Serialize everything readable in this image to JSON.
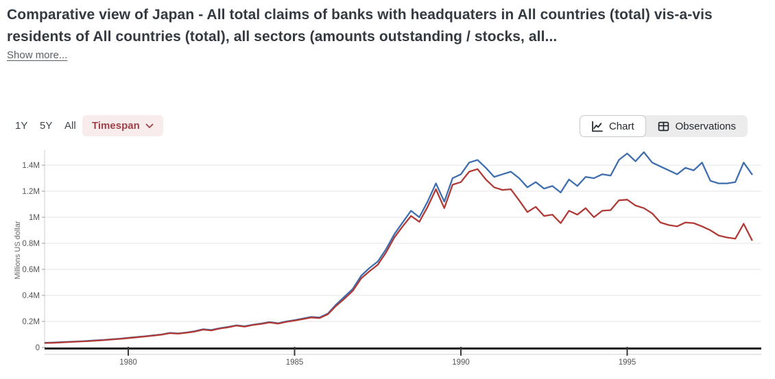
{
  "header": {
    "title": "Comparative view of Japan - All total claims of banks with headquaters in All countries (total) vis-a-vis residents of All countries (total), all sectors (amounts outstanding / stocks, all...",
    "show_more": "Show more..."
  },
  "controls": {
    "range_buttons": [
      {
        "label": "1Y"
      },
      {
        "label": "5Y"
      },
      {
        "label": "All"
      }
    ],
    "timespan": {
      "label": "Timespan",
      "icon": "chevron-down-icon"
    },
    "view_toggle": [
      {
        "label": "Chart",
        "icon": "line-chart-icon",
        "selected": true
      },
      {
        "label": "Observations",
        "icon": "table-icon",
        "selected": false
      }
    ]
  },
  "colors": {
    "title_text": "#333a41",
    "timespan_bg": "#f8ecec",
    "timespan_text": "#a0424a",
    "toggle_bg": "#ececec",
    "blue_series": "#3e6ead",
    "red_series": "#b03a35",
    "gridline": "#e5e5e5",
    "axis_black": "#1b1b1b"
  },
  "chart_data": {
    "type": "line",
    "title": "",
    "xlabel": "",
    "ylabel": "Millions US dollar",
    "grid": "horizontal",
    "legend": "none",
    "xlim": [
      1977.4,
      1999.4
    ],
    "ylim": [
      0,
      1.55
    ],
    "y_unit_note": "axis values shown in M = millions of US dollars",
    "y_ticks": [
      {
        "value": 0,
        "label": "0"
      },
      {
        "value": 0.2,
        "label": "0.2M"
      },
      {
        "value": 0.4,
        "label": "0.4M"
      },
      {
        "value": 0.6,
        "label": "0.6M"
      },
      {
        "value": 0.8,
        "label": "0.8M"
      },
      {
        "value": 1.0,
        "label": "1M"
      },
      {
        "value": 1.2,
        "label": "1.2M"
      },
      {
        "value": 1.4,
        "label": "1.4M"
      }
    ],
    "x_ticks": [
      {
        "value": 1980,
        "label": "1980"
      },
      {
        "value": 1985,
        "label": "1985"
      },
      {
        "value": 1990,
        "label": "1990"
      },
      {
        "value": 1995,
        "label": "1995"
      }
    ],
    "x_start": 1977.5,
    "x_step": 0.25,
    "series": [
      {
        "name": "blue-series",
        "color": "#3e6ead",
        "values": [
          0.036,
          0.038,
          0.041,
          0.044,
          0.047,
          0.05,
          0.054,
          0.058,
          0.063,
          0.068,
          0.074,
          0.08,
          0.086,
          0.093,
          0.1,
          0.112,
          0.108,
          0.115,
          0.125,
          0.14,
          0.135,
          0.148,
          0.158,
          0.17,
          0.163,
          0.175,
          0.184,
          0.195,
          0.186,
          0.2,
          0.21,
          0.222,
          0.235,
          0.23,
          0.26,
          0.33,
          0.39,
          0.45,
          0.55,
          0.61,
          0.66,
          0.755,
          0.87,
          0.96,
          1.05,
          1.0,
          1.12,
          1.26,
          1.12,
          1.3,
          1.33,
          1.42,
          1.44,
          1.38,
          1.31,
          1.33,
          1.35,
          1.3,
          1.23,
          1.27,
          1.22,
          1.24,
          1.19,
          1.29,
          1.24,
          1.31,
          1.3,
          1.33,
          1.32,
          1.44,
          1.49,
          1.43,
          1.5,
          1.42,
          1.39,
          1.36,
          1.33,
          1.38,
          1.36,
          1.42,
          1.28,
          1.26,
          1.26,
          1.27,
          1.42,
          1.33
        ]
      },
      {
        "name": "red-series",
        "color": "#b03a35",
        "values": [
          0.034,
          0.036,
          0.039,
          0.042,
          0.045,
          0.048,
          0.052,
          0.056,
          0.061,
          0.066,
          0.072,
          0.078,
          0.084,
          0.091,
          0.098,
          0.11,
          0.106,
          0.113,
          0.122,
          0.137,
          0.131,
          0.145,
          0.155,
          0.168,
          0.16,
          0.173,
          0.181,
          0.192,
          0.183,
          0.197,
          0.207,
          0.218,
          0.23,
          0.226,
          0.255,
          0.32,
          0.375,
          0.435,
          0.53,
          0.585,
          0.635,
          0.73,
          0.845,
          0.93,
          1.01,
          0.965,
          1.08,
          1.215,
          1.07,
          1.25,
          1.27,
          1.35,
          1.37,
          1.29,
          1.23,
          1.21,
          1.215,
          1.13,
          1.04,
          1.08,
          1.01,
          1.02,
          0.955,
          1.05,
          1.02,
          1.07,
          1.0,
          1.05,
          1.055,
          1.13,
          1.135,
          1.09,
          1.07,
          1.03,
          0.96,
          0.94,
          0.93,
          0.96,
          0.955,
          0.93,
          0.9,
          0.86,
          0.845,
          0.835,
          0.95,
          0.825
        ]
      }
    ]
  }
}
